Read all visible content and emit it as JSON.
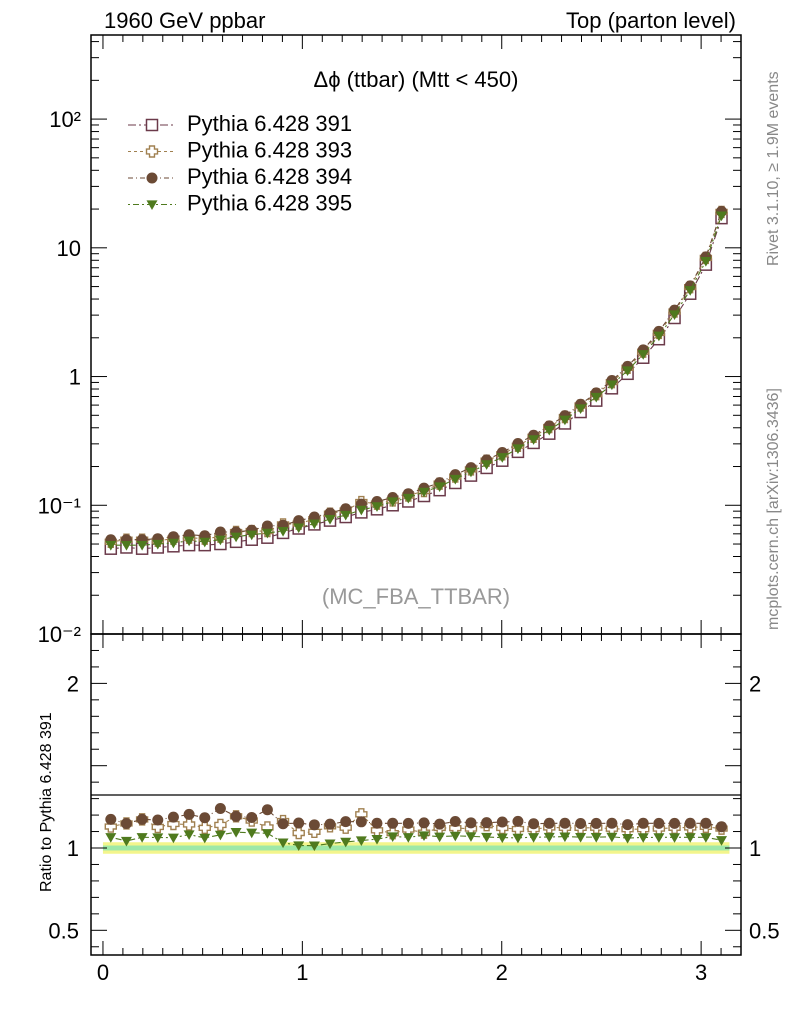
{
  "header": {
    "left": "1960 GeV ppbar",
    "right": "Top (parton level)"
  },
  "side_text": {
    "rivet": "Rivet 3.1.10, ≥ 1.9M events",
    "mcplots": "mcplots.cern.ch [arXiv:1306.3436]"
  },
  "chart_data": {
    "type": "scatter",
    "title": "Δϕ (ttbar) (Mtt < 450)",
    "watermark": "(MC_FBA_TTBAR)",
    "ylabel_ratio": "Ratio to Pythia 6.428 391",
    "xlim": [
      -0.06,
      3.2
    ],
    "ylim_main": [
      0.01,
      450
    ],
    "ylim_ratio": [
      0.35,
      2.3
    ],
    "y_log_scale": true,
    "x_ticks": [
      "0",
      "1",
      "2",
      "3"
    ],
    "y_ticks_main": [
      "10²",
      "10",
      "1",
      "10⁻¹",
      "10⁻²"
    ],
    "y_ticks_ratio": [
      "2",
      "1",
      "0.5"
    ],
    "legend_position": "top-left",
    "x": [
      0.0393,
      0.1178,
      0.1963,
      0.2749,
      0.3534,
      0.432,
      0.5105,
      0.589,
      0.6676,
      0.7461,
      0.8247,
      0.9032,
      0.9817,
      1.0603,
      1.1388,
      1.2174,
      1.2959,
      1.3744,
      1.453,
      1.5315,
      1.6101,
      1.6886,
      1.7671,
      1.8457,
      1.9242,
      2.0028,
      2.0813,
      2.1598,
      2.2384,
      2.3169,
      2.3955,
      2.474,
      2.5525,
      2.6311,
      2.7096,
      2.7882,
      2.8667,
      2.9452,
      3.0238,
      3.1023
    ],
    "series": [
      {
        "name": "Pythia 6.428 391",
        "color": "#6b3a4a",
        "marker": "open-square",
        "values": [
          0.046,
          0.047,
          0.046,
          0.047,
          0.048,
          0.049,
          0.049,
          0.05,
          0.052,
          0.054,
          0.056,
          0.061,
          0.066,
          0.071,
          0.076,
          0.081,
          0.088,
          0.093,
          0.1,
          0.107,
          0.118,
          0.131,
          0.149,
          0.17,
          0.195,
          0.222,
          0.26,
          0.305,
          0.36,
          0.432,
          0.53,
          0.65,
          0.81,
          1.05,
          1.4,
          1.95,
          2.85,
          4.4,
          7.4,
          17.0
        ]
      },
      {
        "name": "Pythia 6.428 393",
        "color": "#a08050",
        "marker": "open-cross",
        "values": [
          0.052,
          0.054,
          0.054,
          0.053,
          0.055,
          0.056,
          0.055,
          0.057,
          0.062,
          0.063,
          0.063,
          0.071,
          0.072,
          0.078,
          0.086,
          0.091,
          0.106,
          0.103,
          0.109,
          0.119,
          0.129,
          0.147,
          0.167,
          0.19,
          0.222,
          0.249,
          0.29,
          0.34,
          0.405,
          0.485,
          0.595,
          0.73,
          0.905,
          1.17,
          1.56,
          2.18,
          3.2,
          4.95,
          8.35,
          19.0
        ]
      },
      {
        "name": "Pythia 6.428 394",
        "color": "#6b4a35",
        "marker": "filled-circle",
        "values": [
          0.054,
          0.054,
          0.054,
          0.055,
          0.057,
          0.059,
          0.058,
          0.062,
          0.062,
          0.064,
          0.069,
          0.07,
          0.076,
          0.081,
          0.087,
          0.094,
          0.102,
          0.107,
          0.115,
          0.123,
          0.136,
          0.15,
          0.173,
          0.196,
          0.225,
          0.257,
          0.302,
          0.35,
          0.414,
          0.497,
          0.609,
          0.747,
          0.932,
          1.199,
          1.61,
          2.242,
          3.277,
          5.06,
          8.51,
          19.2
        ]
      },
      {
        "name": "Pythia 6.428 395",
        "color": "#4f7a1e",
        "marker": "filled-triangle-down",
        "values": [
          0.049,
          0.049,
          0.049,
          0.05,
          0.051,
          0.053,
          0.052,
          0.054,
          0.057,
          0.059,
          0.061,
          0.063,
          0.067,
          0.072,
          0.078,
          0.084,
          0.092,
          0.098,
          0.107,
          0.114,
          0.127,
          0.14,
          0.16,
          0.182,
          0.208,
          0.236,
          0.276,
          0.325,
          0.384,
          0.462,
          0.565,
          0.693,
          0.865,
          1.113,
          1.49,
          2.076,
          3.035,
          4.686,
          7.882,
          17.8
        ]
      }
    ]
  }
}
